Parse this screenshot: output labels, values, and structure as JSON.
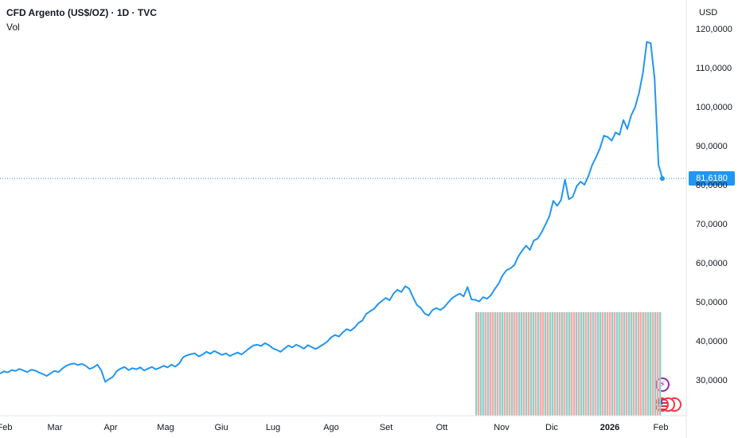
{
  "legend": {
    "title": "CFD Argento (US$/OZ) · 1D · TVC",
    "subtitle": "Vol"
  },
  "price_scale": {
    "currency": "USD",
    "last_price_label": "81,6180"
  },
  "events": {
    "lightning_icon": "⚡"
  },
  "colors": {
    "line": "#2196f3",
    "last_price": "#2196f3",
    "volume_up": "#8fd1c7",
    "volume_down": "#f7a8a8",
    "grid": "#e0e3eb",
    "event_purple": "#9c27b0",
    "flag_red": "#f23645"
  },
  "chart_data": {
    "type": "line",
    "title": "CFD Argento (US$/OZ) · 1D · TVC",
    "x_ticks": [
      "Feb",
      "Mar",
      "Apr",
      "Mag",
      "Giu",
      "Lug",
      "Ago",
      "Set",
      "Ott",
      "Nov",
      "Dic",
      "2026",
      "Feb"
    ],
    "y_ticks": [
      "30,0000",
      "40,0000",
      "50,0000",
      "60,0000",
      "70,0000",
      "80,0000",
      "90,0000",
      "100,0000",
      "110,0000",
      "120,0000"
    ],
    "y_tick_values": [
      30,
      40,
      50,
      60,
      70,
      80,
      90,
      100,
      110,
      120
    ],
    "ylim": [
      20.5,
      123.5
    ],
    "last_value": 81.618,
    "grid": false,
    "series": [
      {
        "values": [
          31.6,
          32.2,
          31.9,
          32.5,
          32.3,
          32.8,
          32.4,
          32.0,
          32.6,
          32.4,
          31.9,
          31.5,
          31.0,
          31.7,
          32.3,
          32.0,
          32.9,
          33.6,
          34.0,
          34.2,
          33.8,
          34.1,
          33.6,
          32.8,
          33.2,
          33.9,
          32.4,
          29.5,
          30.2,
          30.8,
          32.3,
          32.9,
          33.3,
          32.5,
          33.0,
          32.7,
          33.2,
          32.4,
          32.9,
          33.3,
          32.7,
          33.1,
          33.6,
          33.2,
          33.9,
          33.4,
          34.2,
          35.8,
          36.3,
          36.6,
          36.8,
          36.0,
          36.5,
          37.2,
          36.7,
          37.4,
          36.9,
          36.4,
          36.8,
          36.1,
          36.6,
          37.0,
          36.5,
          37.3,
          38.1,
          38.8,
          39.0,
          38.7,
          39.4,
          38.9,
          38.1,
          37.7,
          37.2,
          38.0,
          38.8,
          38.3,
          39.0,
          38.6,
          38.0,
          38.9,
          38.4,
          37.9,
          38.5,
          39.1,
          39.8,
          40.9,
          41.5,
          41.1,
          42.2,
          43.0,
          42.6,
          43.4,
          44.6,
          45.2,
          46.9,
          47.6,
          48.2,
          49.4,
          50.2,
          51.0,
          50.4,
          52.1,
          53.1,
          52.5,
          54.0,
          53.4,
          51.2,
          49.2,
          48.4,
          47.0,
          46.5,
          47.9,
          48.4,
          47.9,
          48.6,
          49.8,
          50.9,
          51.6,
          52.1,
          51.4,
          53.8,
          50.6,
          50.5,
          50.1,
          51.2,
          50.8,
          51.7,
          53.3,
          54.7,
          56.8,
          58.1,
          58.6,
          59.4,
          61.6,
          63.1,
          64.4,
          63.3,
          65.7,
          66.2,
          67.8,
          69.8,
          71.9,
          75.9,
          74.6,
          76.1,
          81.3,
          76.3,
          76.9,
          79.6,
          80.8,
          80.0,
          82.2,
          85.1,
          87.1,
          89.4,
          92.6,
          92.2,
          91.3,
          93.4,
          92.8,
          96.6,
          94.3,
          97.8,
          99.9,
          103.5,
          108.6,
          116.6,
          116.3,
          107.2,
          85.2,
          81.6
        ]
      }
    ],
    "volume": {
      "type": "bar",
      "note_pattern": "alternating up/down bars at constant height",
      "up_down_pattern": [
        1,
        0,
        1,
        1,
        0,
        1,
        0,
        0,
        1,
        0,
        1,
        1,
        0,
        1,
        0,
        1,
        0,
        0,
        1,
        1,
        0,
        1,
        0,
        1,
        1,
        0,
        1,
        0,
        0,
        1,
        0,
        1,
        1,
        0,
        1,
        0,
        1,
        0,
        1,
        1,
        0,
        0,
        1,
        0,
        1,
        1,
        0,
        1,
        0,
        1,
        0,
        1,
        1,
        0,
        1,
        0,
        0,
        1,
        0,
        1,
        1,
        0,
        1,
        0,
        1,
        1,
        0,
        1,
        0,
        0,
        1,
        0,
        1,
        1,
        0,
        1,
        0,
        1
      ]
    }
  }
}
